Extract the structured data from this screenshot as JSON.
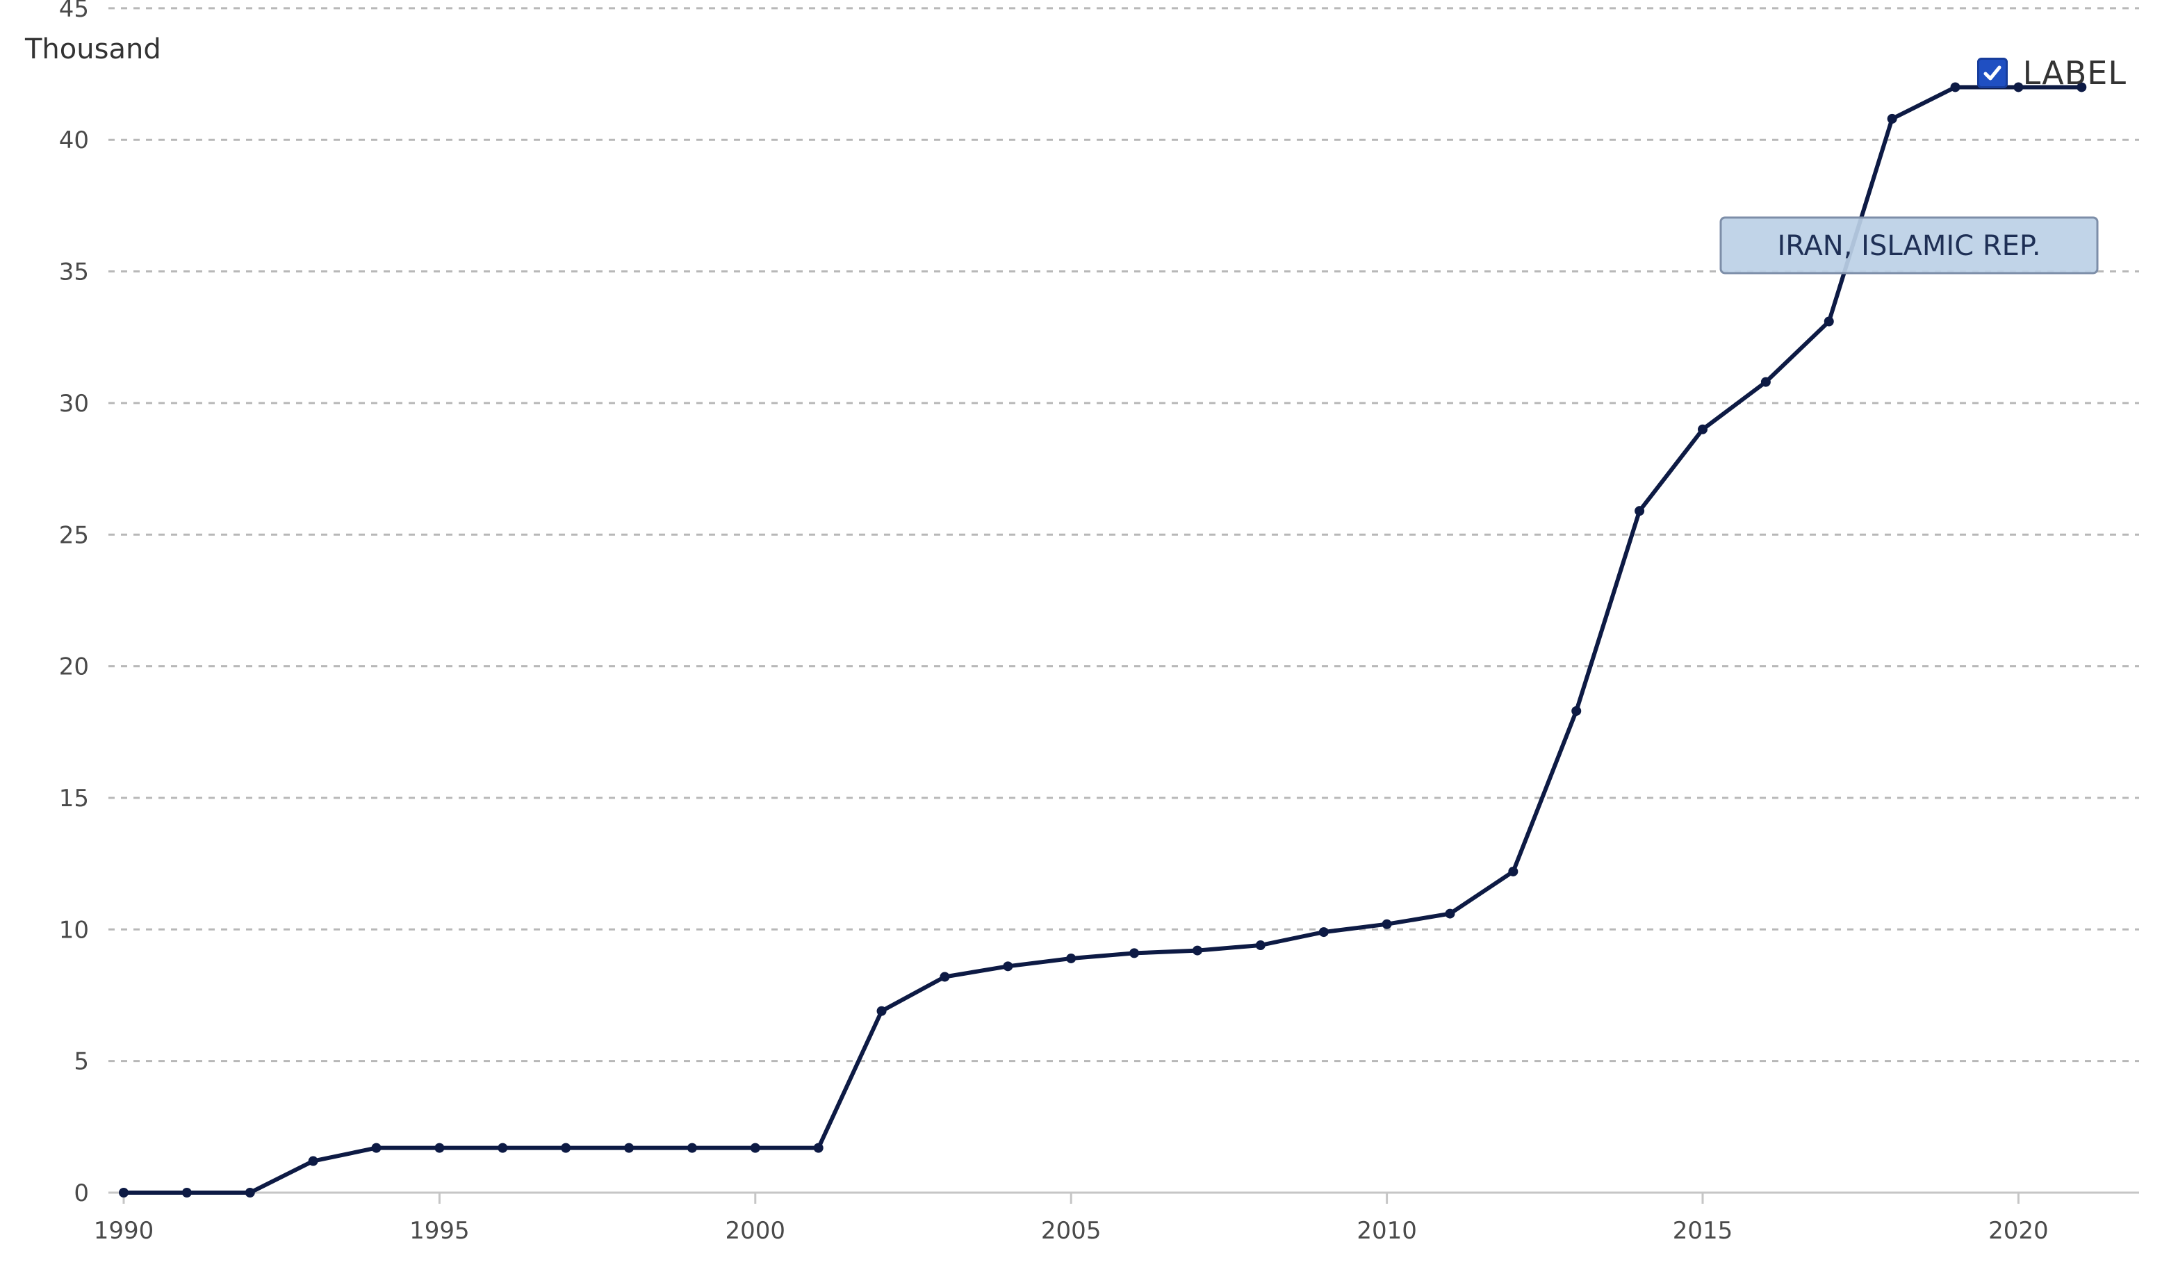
{
  "chart_data": {
    "type": "line",
    "ylabel": "Thousand",
    "legend": {
      "label": "LABEL",
      "checked": true,
      "placement": "top-right"
    },
    "x_ticks": [
      1990,
      1995,
      2000,
      2005,
      2010,
      2015,
      2020
    ],
    "y_ticks": [
      0,
      5,
      10,
      15,
      20,
      25,
      30,
      35,
      40,
      45
    ],
    "xlim": [
      1990,
      2022
    ],
    "ylim": [
      0,
      45
    ],
    "grid": true,
    "series": [
      {
        "name": "IRAN, ISLAMIC REP.",
        "color": "#0d1a44",
        "x": [
          1990,
          1991,
          1992,
          1993,
          1994,
          1995,
          1996,
          1997,
          1998,
          1999,
          2000,
          2001,
          2002,
          2003,
          2004,
          2005,
          2006,
          2007,
          2008,
          2009,
          2010,
          2011,
          2012,
          2013,
          2014,
          2015,
          2016,
          2017,
          2018,
          2019,
          2020,
          2021
        ],
        "values": [
          0,
          0,
          0,
          1.2,
          1.7,
          1.7,
          1.7,
          1.7,
          1.7,
          1.7,
          1.7,
          1.7,
          6.9,
          8.2,
          8.6,
          8.9,
          9.1,
          9.2,
          9.4,
          9.9,
          10.2,
          10.6,
          12.2,
          18.3,
          25.9,
          29.0,
          30.8,
          33.1,
          40.8,
          42.0,
          42.0,
          42.0
        ]
      }
    ]
  },
  "colors": {
    "line": "#0d1a44",
    "grid": "#b8b8b8",
    "axis": "#c6c6c6",
    "tag_fill": "#bcd0e6",
    "tag_border": "#7d8ea8",
    "checkbox": "#1f4fc2"
  },
  "icons": {
    "legend_checkbox": "checkmark-icon"
  }
}
